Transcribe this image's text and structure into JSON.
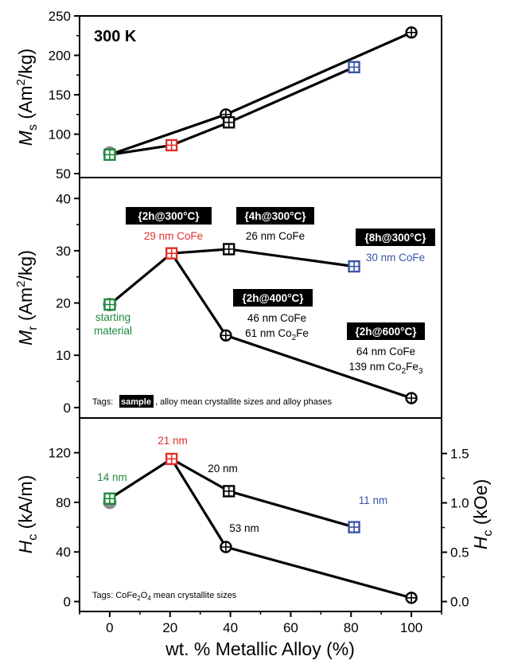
{
  "colors": {
    "green": "#1f8a3c",
    "red": "#e0312b",
    "blue": "#3a54a6",
    "black": "#000000",
    "gray_marker": "#8a8a8a"
  },
  "marker_types": {
    "square_plus": "square with plus (sample at annealing condition)",
    "circle_plus": "circle with plus"
  },
  "chart_data": [
    {
      "type": "line",
      "panel": "top",
      "ylabel": "M_s (Am²/kg)",
      "ylim": [
        45,
        250
      ],
      "yticks": [
        50,
        100,
        150,
        200,
        250
      ],
      "xlim": [
        -10,
        110
      ],
      "annotation": "300 K",
      "series": [
        {
          "color": "black",
          "marker": "circle_plus",
          "x": [
            0,
            38.5,
            100
          ],
          "y": [
            74,
            125,
            229
          ]
        },
        {
          "color": "black",
          "marker": "square_plus",
          "x": [
            0,
            20.5,
            39.5,
            81
          ],
          "y": [
            74,
            86,
            115,
            185
          ],
          "marker_colors": [
            "green",
            "red",
            "black",
            "blue"
          ]
        }
      ],
      "extra_markers": [
        {
          "x": 0,
          "y": 76,
          "shape": "filled_circle",
          "color": "gray_marker"
        }
      ]
    },
    {
      "type": "line",
      "panel": "middle",
      "ylabel": "M_r (Am²/kg)",
      "ylim": [
        -2,
        44
      ],
      "yticks": [
        0,
        10,
        20,
        30,
        40
      ],
      "xlim": [
        -10,
        110
      ],
      "series": [
        {
          "color": "black",
          "marker": "square_plus",
          "x": [
            0,
            20.5,
            39.5,
            81
          ],
          "y": [
            19.7,
            29.5,
            30.3,
            27.0
          ],
          "marker_colors": [
            "green",
            "red",
            "black",
            "blue"
          ]
        },
        {
          "color": "black",
          "marker": "circle_plus",
          "x": [
            20.5,
            38.5,
            100
          ],
          "y": [
            29.5,
            13.8,
            1.8
          ],
          "marker_colors": [
            "none",
            "black",
            "black"
          ]
        }
      ],
      "extra_markers": [
        {
          "x": 0,
          "y": 19.7,
          "shape": "filled_circle",
          "color": "gray_marker"
        }
      ],
      "tags_note": {
        "prefix": "Tags:",
        "box": "sample",
        "suffix": ", alloy mean crystallite sizes and alloy phases"
      },
      "labels": [
        {
          "box": "{2h@300°C}",
          "lines": [
            "29 nm CoFe"
          ],
          "color": "red"
        },
        {
          "box": "{4h@300°C}",
          "lines": [
            "26 nm CoFe"
          ],
          "color": "black"
        },
        {
          "box": "{8h@300°C}",
          "lines": [
            "30 nm CoFe"
          ],
          "color": "blue"
        },
        {
          "box": "{2h@400°C}",
          "lines": [
            "46 nm CoFe",
            "61 nm Co",
            "2",
            "Fe"
          ],
          "color": "black"
        },
        {
          "box": "{2h@600°C}",
          "lines": [
            "64 nm CoFe",
            "139 nm Co",
            "2",
            "Fe",
            "3"
          ],
          "color": "black"
        },
        {
          "box": "",
          "lines": [
            "starting",
            "material"
          ],
          "color": "green"
        }
      ]
    },
    {
      "type": "line",
      "panel": "bottom",
      "ylabel": "H_c (kA/m)",
      "y2label": "H_c (kOe)",
      "ylim": [
        -8,
        148
      ],
      "yticks": [
        0,
        40,
        80,
        120
      ],
      "y2ticks": [
        "0.0",
        "0.5",
        "1.0",
        "1.5"
      ],
      "xlim": [
        -10,
        110
      ],
      "xticks": [
        0,
        20,
        40,
        60,
        80,
        100
      ],
      "xlabel": "wt. % Metallic Alloy (%)",
      "series": [
        {
          "color": "black",
          "marker": "square_plus",
          "x": [
            0,
            20.5,
            39.5,
            81
          ],
          "y": [
            83,
            115,
            89,
            60
          ],
          "marker_colors": [
            "green",
            "red",
            "black",
            "blue"
          ]
        },
        {
          "color": "black",
          "marker": "circle_plus",
          "x": [
            20.5,
            38.5,
            100
          ],
          "y": [
            115,
            44,
            3
          ],
          "marker_colors": [
            "none",
            "black",
            "black"
          ]
        }
      ],
      "extra_markers": [
        {
          "x": 0,
          "y": 80,
          "shape": "filled_circle",
          "color": "gray_marker"
        }
      ],
      "labels": [
        {
          "text": "14 nm",
          "color": "green"
        },
        {
          "text": "21 nm",
          "color": "red"
        },
        {
          "text": "20 nm",
          "color": "black"
        },
        {
          "text": "11 nm",
          "color": "blue"
        },
        {
          "text": "53 nm",
          "color": "black"
        }
      ],
      "tags_note": {
        "prefix": "Tags: CoFe",
        "sub": "2",
        "mid": "O",
        "sub2": "4",
        "suffix": " mean crystallite sizes"
      }
    }
  ],
  "text": {
    "ms_sym": "M",
    "ms_sub": "s",
    "ms_unit_a": " (Am",
    "ms_unit_sup": "2",
    "ms_unit_b": "/kg)",
    "mr_sym": "M",
    "mr_sub": "r",
    "mr_unit_a": " (Am",
    "mr_unit_sup": "2",
    "mr_unit_b": "/kg)",
    "hc_sym": "H",
    "hc_sub": "c",
    "hc_unit": " (kA/m)",
    "hc2_unit": " (kOe)"
  }
}
